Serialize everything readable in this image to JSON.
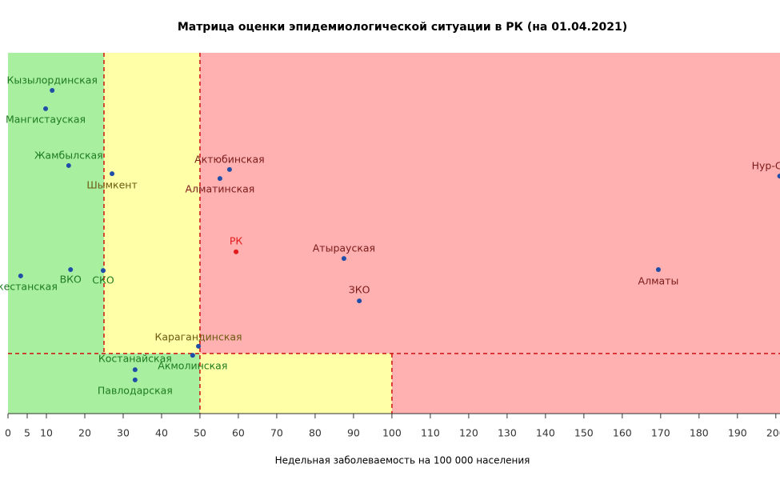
{
  "chart_data": {
    "type": "scatter",
    "title": "Матрица оценки эпидемиологической ситуации в РК (на 01.04.2021)",
    "x_label": "Недельная заболеваемость на 100 000 населения",
    "labels": [
      "Кызылординская",
      "Мангистауская",
      "Жамбылская",
      "Шымкент",
      "Актюбинская",
      "Алматинская",
      "Нур-Султан",
      "РК",
      "Атырауская",
      "Алматы",
      "Туркестанская",
      "ВКО",
      "СКО",
      "ЗКО",
      "Карагандинская",
      "Акмолинская",
      "Костанайская",
      "Павлодарская"
    ],
    "x": [
      11.5,
      9.8,
      15.8,
      27.1,
      57.7,
      55.2,
      201,
      59.4,
      87.5,
      169.4,
      3.3,
      16.3,
      24.8,
      91.5,
      49.6,
      48.1,
      33.1,
      33.1
    ],
    "y": [
      1.875,
      1.814,
      1.625,
      1.598,
      1.612,
      1.582,
      1.59,
      1.338,
      1.316,
      1.279,
      1.258,
      1.279,
      1.276,
      1.175,
      1.024,
      0.994,
      0.946,
      0.912
    ],
    "colors": [
      "#1f4ea8",
      "#1f4ea8",
      "#1f4ea8",
      "#1f4ea8",
      "#1f4ea8",
      "#1f4ea8",
      "#1f4ea8",
      "#e31a1c",
      "#1f4ea8",
      "#1f4ea8",
      "#1f4ea8",
      "#1f4ea8",
      "#1f4ea8",
      "#1f4ea8",
      "#1f4ea8",
      "#1f4ea8",
      "#1f4ea8",
      "#1f4ea8"
    ],
    "xlim": [
      0,
      201.5
    ],
    "xticks": [
      0,
      5,
      10,
      20,
      30,
      40,
      50,
      60,
      70,
      80,
      90,
      100,
      110,
      120,
      130,
      140,
      150,
      160,
      170,
      180,
      190,
      200
    ],
    "ylim": [
      0.8,
      2.0
    ],
    "thresholds": {
      "x": [
        25,
        50,
        100
      ],
      "y": 1
    },
    "zone_colors": {
      "green": "#a8f0a0",
      "yellow": "#ffffa8",
      "red": "#ffb0b0"
    }
  }
}
